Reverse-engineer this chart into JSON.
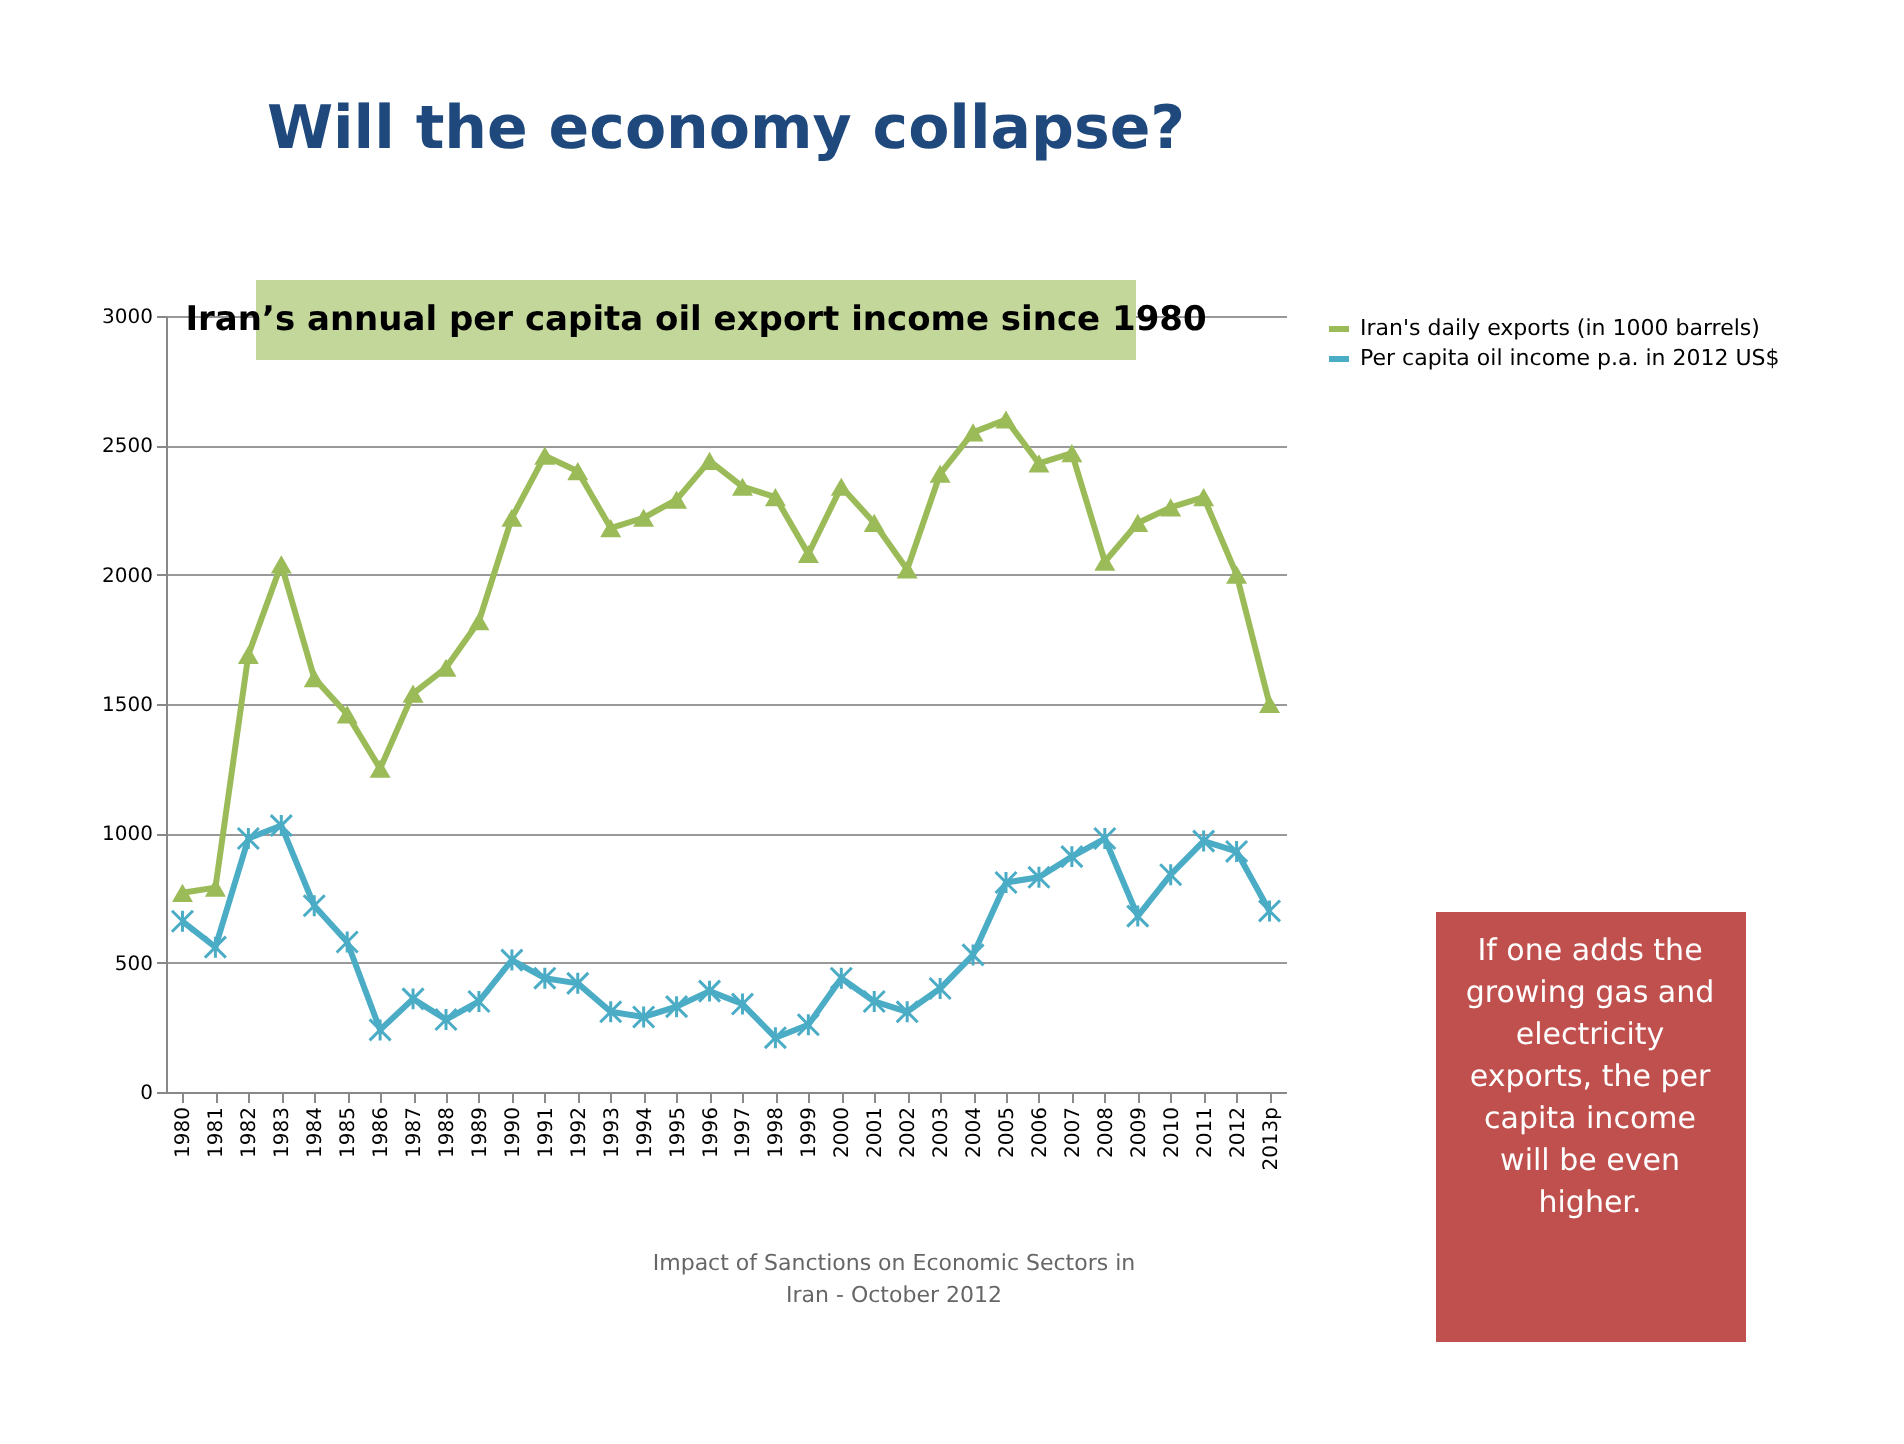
{
  "chart_data": {
    "type": "line",
    "title": "Will the economy collapse?",
    "subtitle": "Iran’s annual per capita oil export income since 1980",
    "categories": [
      "1980",
      "1981",
      "1982",
      "1983",
      "1984",
      "1985",
      "1986",
      "1987",
      "1988",
      "1989",
      "1990",
      "1991",
      "1992",
      "1993",
      "1994",
      "1995",
      "1996",
      "1997",
      "1998",
      "1999",
      "2000",
      "2001",
      "2002",
      "2003",
      "2004",
      "2005",
      "2006",
      "2007",
      "2008",
      "2009",
      "2010",
      "2011",
      "2012",
      "2013p"
    ],
    "series": [
      {
        "name": "Iran's daily exports (in 1000 barrels)",
        "color": "#9bbb59",
        "marker": "triangle",
        "values": [
          770,
          790,
          1690,
          2040,
          1600,
          1460,
          1250,
          1540,
          1640,
          1820,
          2220,
          2460,
          2400,
          2180,
          2220,
          2290,
          2440,
          2340,
          2300,
          2080,
          2340,
          2200,
          2020,
          2390,
          2550,
          2600,
          2430,
          2470,
          2050,
          2200,
          2260,
          2300,
          2000,
          1500
        ]
      },
      {
        "name": "Per capita oil income p.a. in 2012 US$",
        "color": "#4bacc6",
        "marker": "cross",
        "values": [
          660,
          560,
          980,
          1030,
          720,
          580,
          240,
          360,
          280,
          350,
          510,
          440,
          420,
          310,
          290,
          330,
          390,
          340,
          210,
          260,
          440,
          350,
          310,
          400,
          530,
          810,
          830,
          910,
          980,
          680,
          840,
          970,
          930,
          700
        ]
      }
    ],
    "ylim": [
      0,
      3000
    ],
    "yticks": [
      0,
      500,
      1000,
      1500,
      2000,
      2500,
      3000
    ],
    "grid": "y",
    "legend": "right",
    "annotations": [
      "If one adds the growing gas and electricity exports, the per capita income will be even higher.",
      "Impact of Sanctions on Economic Sectors in Iran - October 2012"
    ]
  }
}
